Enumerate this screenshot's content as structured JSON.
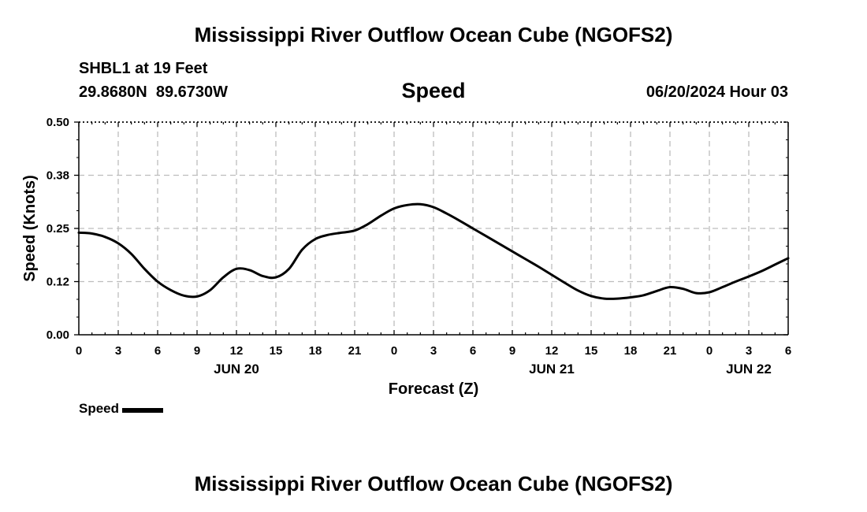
{
  "header": {
    "title": "Mississippi River Outflow Ocean Cube (NGOFS2)",
    "station": "SHBL1 at 19 Feet",
    "coords": "29.8680N  89.6730W",
    "date": "06/20/2024 Hour 03"
  },
  "footer": {
    "title": "Mississippi River Outflow Ocean Cube (NGOFS2)"
  },
  "chart_data": {
    "type": "line",
    "title": "Speed",
    "xlabel": "Forecast (Z)",
    "ylabel": "Speed (Knots)",
    "ylim": [
      0,
      0.5
    ],
    "yticks": [
      "0.00",
      "0.12",
      "0.25",
      "0.38",
      "0.50"
    ],
    "xlim": [
      0,
      54
    ],
    "xtick_labels": [
      "0",
      "3",
      "6",
      "9",
      "12",
      "15",
      "18",
      "21",
      "0",
      "3",
      "6",
      "9",
      "12",
      "15",
      "18",
      "21",
      "0",
      "3",
      "6"
    ],
    "day_labels": [
      {
        "label": "JUN 20",
        "hour": 12
      },
      {
        "label": "JUN 21",
        "hour": 36
      },
      {
        "label": "JUN 22",
        "hour": 51
      }
    ],
    "grid": true,
    "legend_position": "bottom-left",
    "series": [
      {
        "name": "Speed",
        "color": "#000000",
        "x": [
          0,
          1,
          2,
          3,
          4,
          5,
          6,
          7,
          8,
          9,
          10,
          11,
          12,
          13,
          14,
          15,
          16,
          17,
          18,
          19,
          20,
          21,
          22,
          23,
          24,
          25,
          26,
          27,
          28,
          29,
          30,
          31,
          32,
          33,
          34,
          35,
          36,
          37,
          38,
          39,
          40,
          41,
          42,
          43,
          44,
          45,
          46,
          47,
          48,
          49,
          50,
          51,
          52,
          53,
          54
        ],
        "values": [
          0.24,
          0.238,
          0.23,
          0.215,
          0.19,
          0.155,
          0.125,
          0.105,
          0.092,
          0.09,
          0.105,
          0.135,
          0.155,
          0.152,
          0.138,
          0.135,
          0.155,
          0.2,
          0.225,
          0.235,
          0.24,
          0.245,
          0.26,
          0.28,
          0.297,
          0.305,
          0.307,
          0.3,
          0.285,
          0.268,
          0.25,
          0.232,
          0.214,
          0.196,
          0.178,
          0.16,
          0.141,
          0.122,
          0.104,
          0.091,
          0.085,
          0.085,
          0.088,
          0.093,
          0.103,
          0.112,
          0.108,
          0.098,
          0.1,
          0.112,
          0.125,
          0.137,
          0.15,
          0.165,
          0.18
        ]
      }
    ]
  },
  "legend": {
    "label": "Speed"
  }
}
